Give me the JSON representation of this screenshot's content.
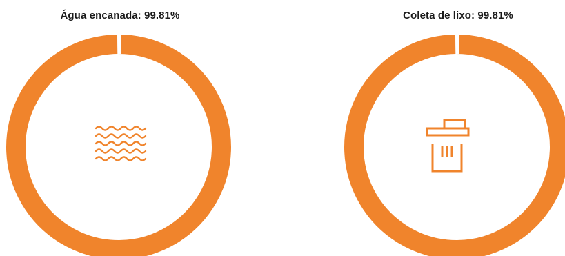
{
  "theme": {
    "ring_color": "#f0842c",
    "gap_color": "#ffffff",
    "icon_color": "#f0842c",
    "title_color": "#1a1a1a"
  },
  "chart_data": [
    {
      "type": "pie",
      "title": "Água encanada: 99.81%",
      "icon": "water-waves-icon",
      "slices": [
        {
          "value": 99.81
        },
        {
          "value": 0.19
        }
      ]
    },
    {
      "type": "pie",
      "title": "Coleta de lixo: 99.81%",
      "icon": "trash-can-icon",
      "slices": [
        {
          "value": 99.81
        },
        {
          "value": 0.19
        }
      ]
    }
  ]
}
